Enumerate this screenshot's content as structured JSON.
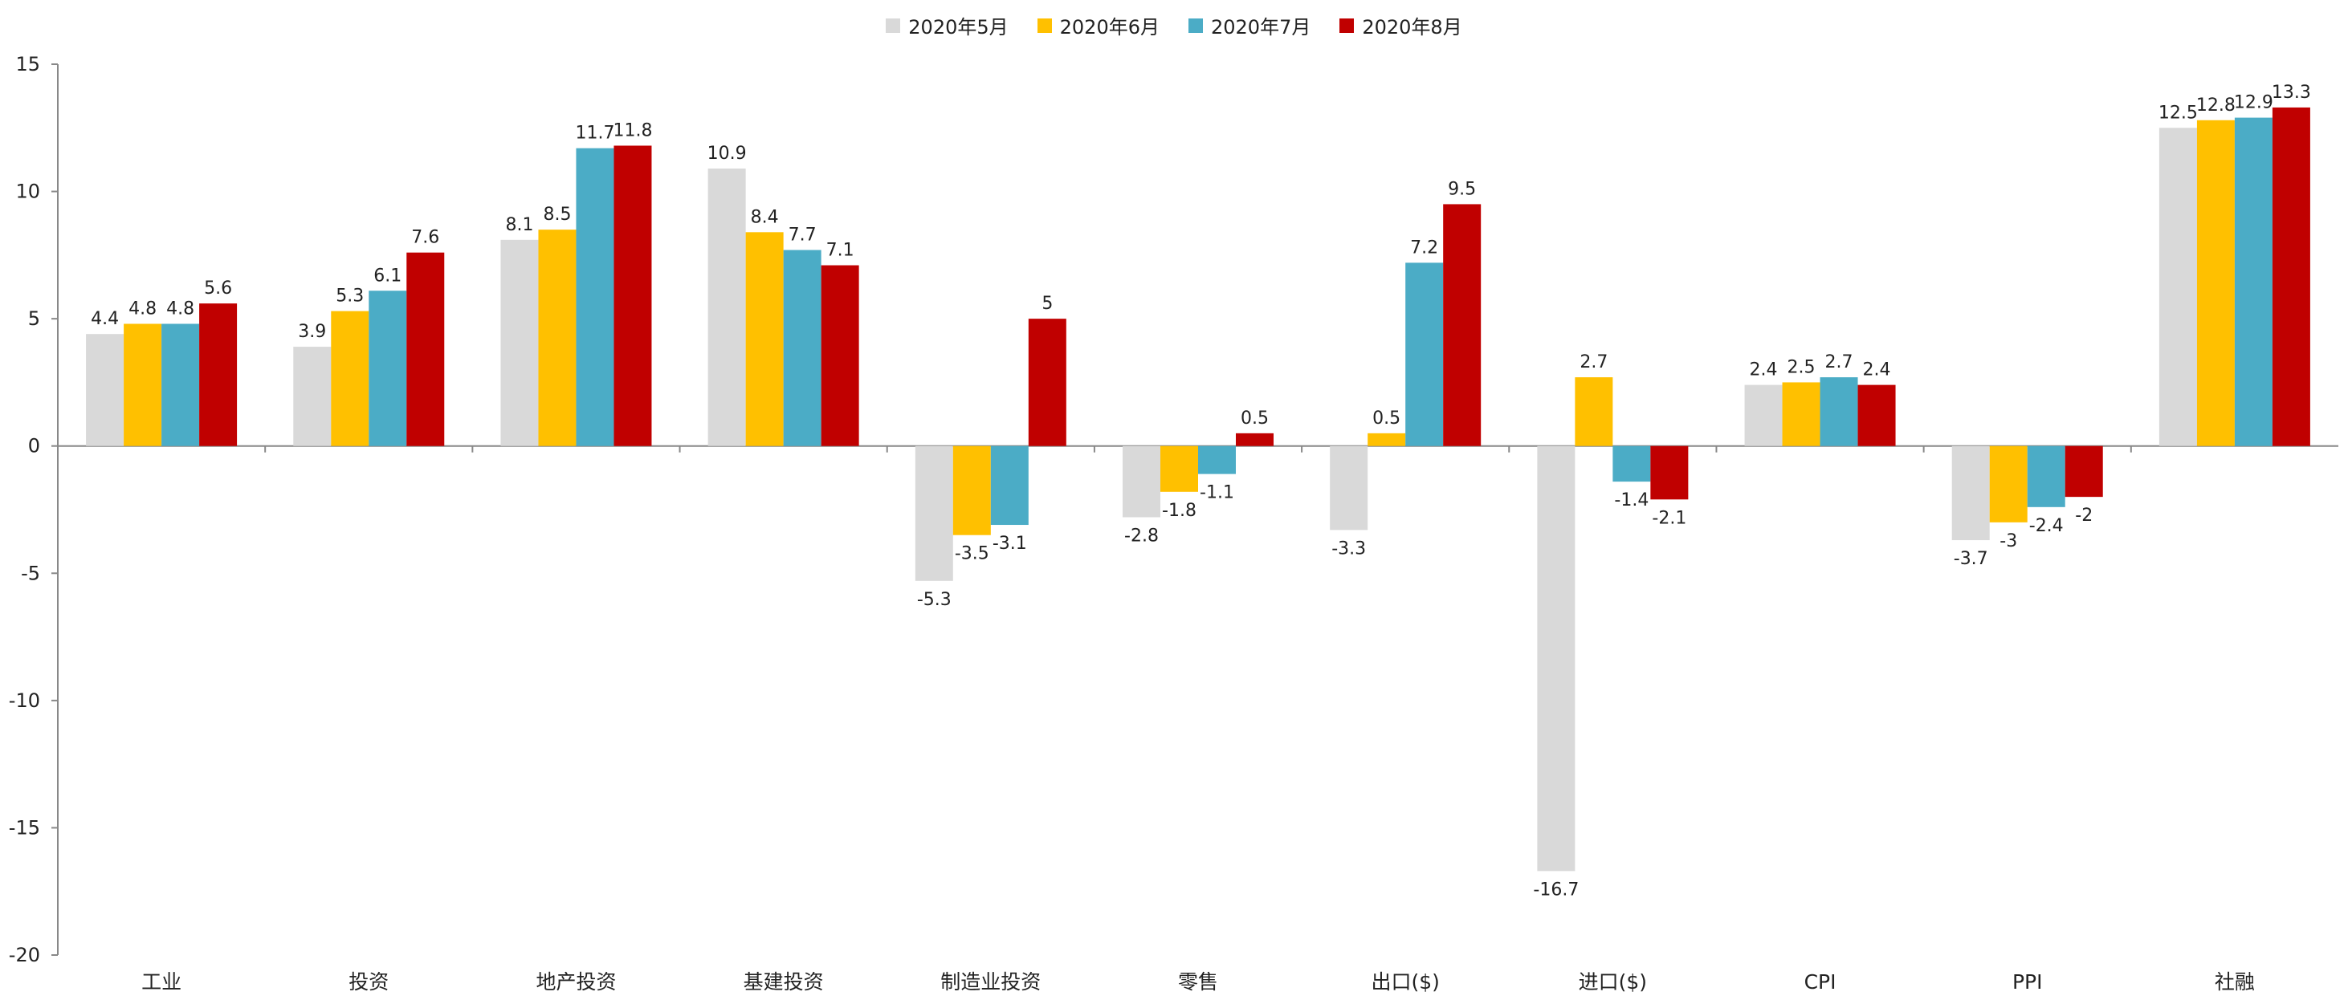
{
  "chart_data": {
    "type": "bar",
    "categories": [
      "工业",
      "投资",
      "地产投资",
      "基建投资",
      "制造业投资",
      "零售",
      "出口($)",
      "进口($)",
      "CPI",
      "PPI",
      "社融"
    ],
    "series": [
      {
        "name": "2020年5月",
        "color": "#d9d9d9",
        "values": [
          4.4,
          3.9,
          8.1,
          10.9,
          -5.3,
          -2.8,
          -3.3,
          -16.7,
          2.4,
          -3.7,
          12.5
        ]
      },
      {
        "name": "2020年6月",
        "color": "#ffc000",
        "values": [
          4.8,
          5.3,
          8.5,
          8.4,
          -3.5,
          -1.8,
          0.5,
          2.7,
          2.5,
          -3,
          12.8
        ]
      },
      {
        "name": "2020年7月",
        "color": "#4bacc6",
        "values": [
          4.8,
          6.1,
          11.7,
          7.7,
          -3.1,
          -1.1,
          7.2,
          -1.4,
          2.7,
          -2.4,
          12.9
        ]
      },
      {
        "name": "2020年8月",
        "color": "#c00000",
        "values": [
          5.6,
          7.6,
          11.8,
          7.1,
          5,
          0.5,
          9.5,
          -2.1,
          2.4,
          -2,
          13.3
        ]
      }
    ],
    "data_labels": [
      [
        "4.4",
        "3.9",
        "8.1",
        "10.9",
        "-5.3",
        "-2.8",
        "-3.3",
        "-16.7",
        "2.4",
        "-3.7",
        "12.5"
      ],
      [
        "4.8",
        "5.3",
        "8.5",
        "8.4",
        "-3.5",
        "-1.8",
        "0.5",
        "2.7",
        "2.5",
        "-3",
        "12.8"
      ],
      [
        "4.8",
        "6.1",
        "11.7",
        "7.7",
        "-3.1",
        "-1.1",
        "7.2",
        "-1.4",
        "2.7",
        "-2.4",
        "12.9"
      ],
      [
        "5.6",
        "7.6",
        "11.8",
        "7.1",
        "5",
        "0.5",
        "9.5",
        "-2.1",
        "2.4",
        "-2",
        "13.3"
      ]
    ],
    "yticks": [
      "15",
      "10",
      "5",
      "0",
      "-5",
      "-10",
      "-15",
      "-20"
    ],
    "ylim": [
      -20,
      15
    ],
    "grid": false,
    "legend_position": "top-center",
    "title": "",
    "xlabel": "",
    "ylabel": ""
  }
}
